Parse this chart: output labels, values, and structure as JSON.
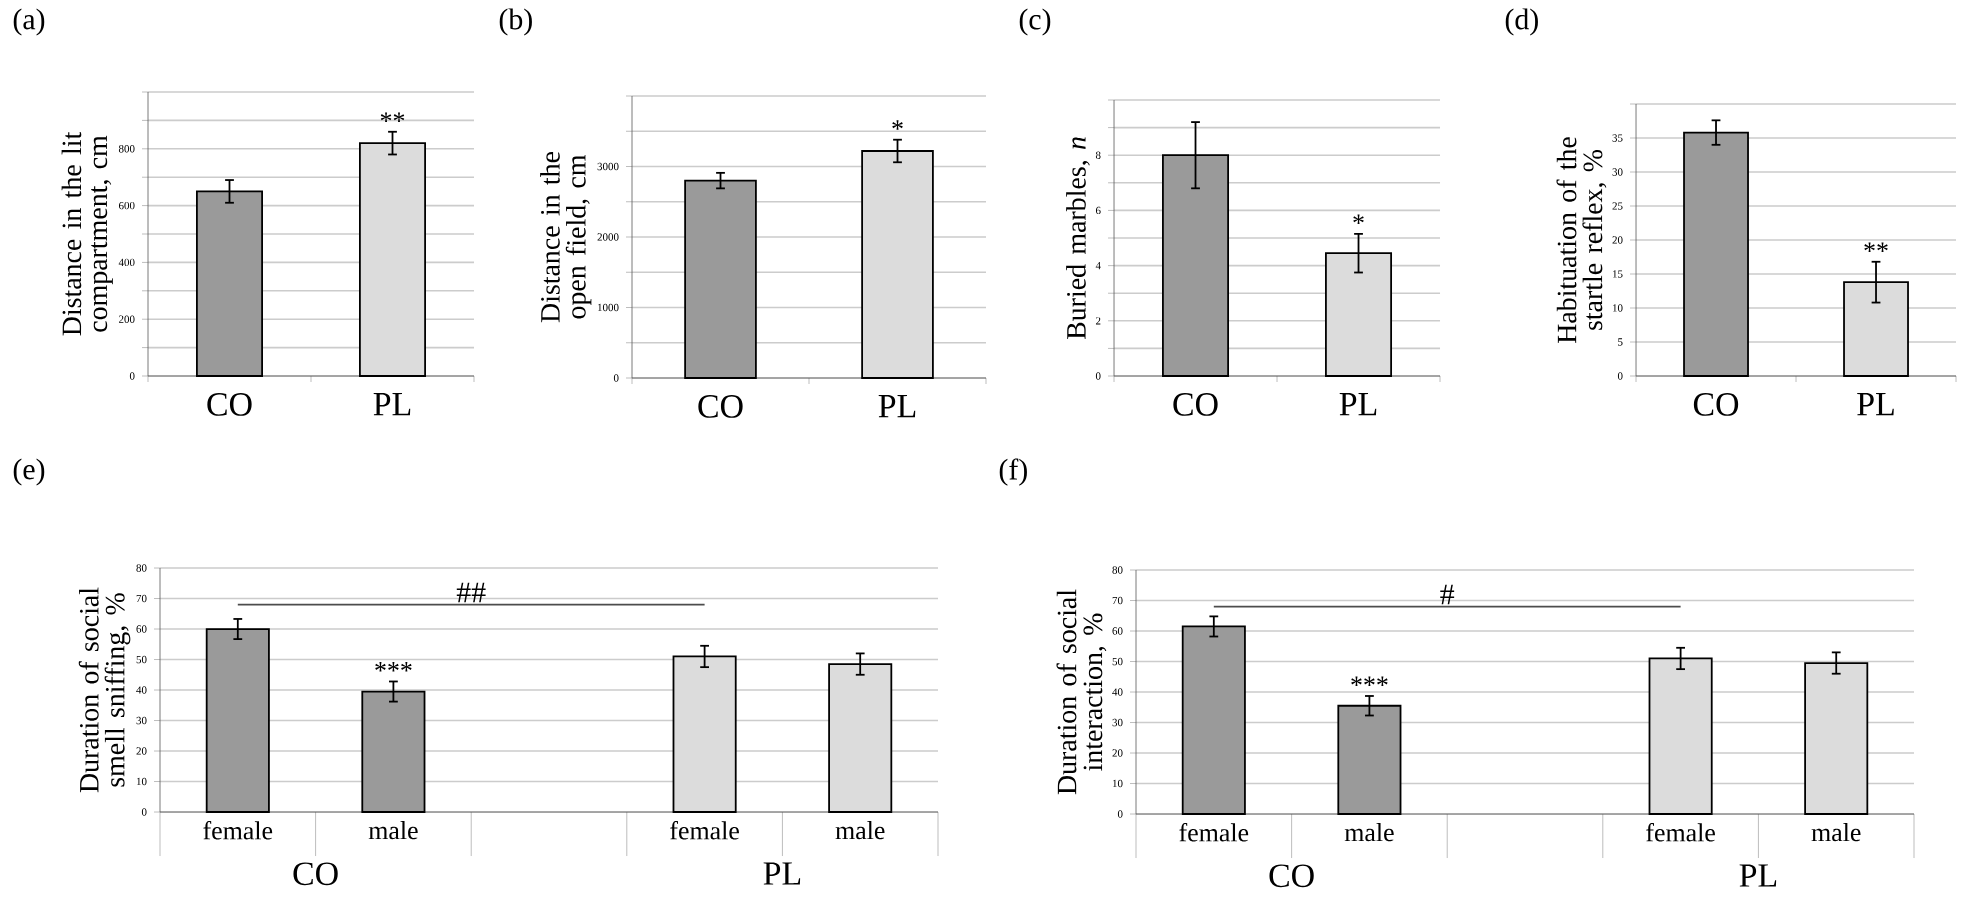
{
  "chart_data": [
    {
      "type": "bar",
      "title": "(a)",
      "ylabel": "Distance in the lit compartment, cm",
      "categories": [
        "CO",
        "PL"
      ],
      "values": [
        650,
        820
      ],
      "errors": [
        40,
        40
      ],
      "colors": [
        "#9a9a9a",
        "#dcdcdc"
      ],
      "ylim": [
        0,
        1000
      ],
      "yticks": [
        0,
        {
          "value": 100,
          "label": null
        },
        200,
        {
          "value": 300,
          "label": null
        },
        400,
        {
          "value": 500,
          "label": null
        },
        600,
        {
          "value": 700,
          "label": null
        },
        800,
        {
          "value": 900,
          "label": null
        },
        {
          "value": 1000,
          "label": null
        }
      ],
      "grid": "y",
      "annotations": [
        "**"
      ]
    },
    {
      "type": "bar",
      "title": "(b)",
      "ylabel": "Distance in the open field, cm",
      "categories": [
        "CO",
        "PL"
      ],
      "values": [
        2800,
        3220
      ],
      "errors": [
        110,
        160
      ],
      "colors": [
        "#9a9a9a",
        "#dcdcdc"
      ],
      "ylim": [
        0,
        4000
      ],
      "yticks": [
        0,
        {
          "value": 500,
          "label": null
        },
        1000,
        {
          "value": 1500,
          "label": null
        },
        2000,
        {
          "value": 2500,
          "label": null
        },
        3000,
        {
          "value": 3500,
          "label": null
        },
        {
          "value": 4000,
          "label": null
        }
      ],
      "grid": "y",
      "annotations": [
        "*"
      ]
    },
    {
      "type": "bar",
      "title": "(c)",
      "ylabel": "Buried marbles, *n*",
      "categories": [
        "CO",
        "PL"
      ],
      "values": [
        8,
        4.45
      ],
      "errors": [
        1.2,
        0.7
      ],
      "colors": [
        "#9a9a9a",
        "#dcdcdc"
      ],
      "ylim": [
        0,
        10
      ],
      "yticks": [
        0,
        {
          "value": 1,
          "label": null
        },
        2,
        {
          "value": 3,
          "label": null
        },
        4,
        {
          "value": 5,
          "label": null
        },
        6,
        {
          "value": 7,
          "label": null
        },
        8,
        {
          "value": 9,
          "label": null
        },
        {
          "value": 10,
          "label": null
        }
      ],
      "grid": "y",
      "annotations": [
        "*"
      ]
    },
    {
      "type": "bar",
      "title": "(d)",
      "ylabel": "Habituation of the startle reflex, %",
      "categories": [
        "CO",
        "PL"
      ],
      "values": [
        35.8,
        13.8
      ],
      "errors": [
        1.8,
        3
      ],
      "colors": [
        "#9a9a9a",
        "#dcdcdc"
      ],
      "ylim": [
        0,
        40
      ],
      "yticks": [
        0,
        5,
        10,
        15,
        20,
        25,
        30,
        35,
        {
          "value": 40,
          "label": null
        }
      ],
      "grid": "y",
      "annotations": [
        "**"
      ]
    },
    {
      "type": "bar",
      "title": "(e)",
      "ylabel": "Duration of social smell sniffing, %",
      "categories": [
        "female",
        "male",
        null,
        "female",
        "male"
      ],
      "values": [
        60,
        39.5,
        null,
        51,
        48.5
      ],
      "errors": [
        3.3,
        3.3,
        null,
        3.5,
        3.5
      ],
      "colors": [
        "#9a9a9a",
        "#9a9a9a",
        "#9a9a9a",
        "#dcdcdc",
        "#dcdcdc"
      ],
      "ylim": [
        0,
        80
      ],
      "yticks": [
        0,
        10,
        20,
        30,
        40,
        50,
        60,
        70,
        80
      ],
      "grid": "y",
      "annotations": [
        "***",
        "##",
        "CO",
        "PL"
      ]
    },
    {
      "type": "bar",
      "title": "(f)",
      "ylabel": "Duration of social interaction, %",
      "categories": [
        "female",
        "male",
        null,
        "female",
        "male"
      ],
      "values": [
        61.5,
        35.5,
        null,
        51,
        49.5
      ],
      "errors": [
        3.3,
        3.2,
        null,
        3.5,
        3.5
      ],
      "colors": [
        "#9a9a9a",
        "#9a9a9a",
        "#9a9a9a",
        "#dcdcdc",
        "#dcdcdc"
      ],
      "ylim": [
        0,
        80
      ],
      "yticks": [
        0,
        10,
        20,
        30,
        40,
        50,
        60,
        70,
        80
      ],
      "grid": "y",
      "annotations": [
        "***",
        "#",
        "CO",
        "PL"
      ]
    }
  ]
}
